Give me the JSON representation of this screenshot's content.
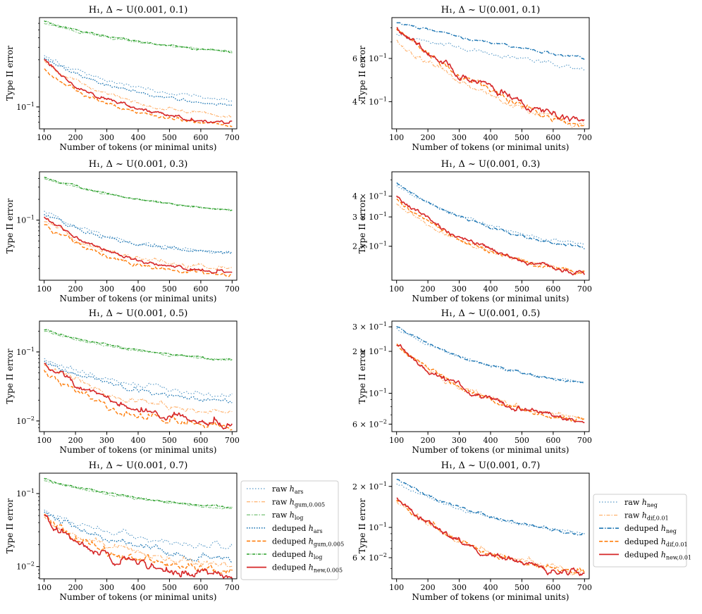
{
  "chart_data": {
    "type": "line",
    "xlabel": "Number of tokens (or minimal units)",
    "ylabel": "Type II error",
    "xticks": [
      100,
      200,
      300,
      400,
      500,
      600,
      700
    ],
    "xlim": [
      85,
      715
    ],
    "series_styles": {
      "raw_ars": {
        "color": "#1f77b4",
        "dash": "1.5 2.5",
        "opacity": 0.75,
        "width": 1.1
      },
      "raw_gum": {
        "color": "#ff7f0e",
        "dash": "5 2 1.5 2",
        "opacity": 0.6,
        "width": 1.1
      },
      "raw_log": {
        "color": "#2ca02c",
        "dash": "5 2 1.5 2",
        "opacity": 0.6,
        "width": 1.1
      },
      "ded_ars": {
        "color": "#1f77b4",
        "dash": "1.5 2",
        "opacity": 1,
        "width": 1.4
      },
      "ded_gum": {
        "color": "#ff7f0e",
        "dash": "5 2.5",
        "opacity": 1,
        "width": 1.4
      },
      "ded_log": {
        "color": "#2ca02c",
        "dash": "4 1.5 1 1.5",
        "opacity": 1,
        "width": 1.4
      },
      "ded_new005": {
        "color": "#d62728",
        "dash": "",
        "opacity": 1,
        "width": 1.6
      },
      "raw_neg": {
        "color": "#1f77b4",
        "dash": "1.5 2.5",
        "opacity": 0.75,
        "width": 1.1
      },
      "raw_dif": {
        "color": "#ff7f0e",
        "dash": "5 2 1.5 2",
        "opacity": 0.6,
        "width": 1.1
      },
      "ded_neg": {
        "color": "#1f77b4",
        "dash": "6 2 1.5 2",
        "opacity": 1,
        "width": 1.4
      },
      "ded_dif": {
        "color": "#ff7f0e",
        "dash": "5 2.5",
        "opacity": 1,
        "width": 1.4
      },
      "ded_new001": {
        "color": "#d62728",
        "dash": "",
        "opacity": 1,
        "width": 1.6
      }
    },
    "left_legend": {
      "placement": "right-of-bottom-left-panel",
      "entries": [
        {
          "key": "raw_ars",
          "prefix": "raw ",
          "base": "h",
          "sub": "ars"
        },
        {
          "key": "raw_gum",
          "prefix": "raw ",
          "base": "h",
          "sub": "gum,0.005"
        },
        {
          "key": "raw_log",
          "prefix": "raw ",
          "base": "h",
          "sub": "log"
        },
        {
          "key": "ded_ars",
          "prefix": "deduped ",
          "base": "h",
          "sub": "ars"
        },
        {
          "key": "ded_gum",
          "prefix": "deduped ",
          "base": "h",
          "sub": "gum,0.005"
        },
        {
          "key": "ded_log",
          "prefix": "deduped ",
          "base": "h",
          "sub": "log"
        },
        {
          "key": "ded_new005",
          "prefix": "deduped ",
          "base": "h",
          "sub": "new,0.005"
        }
      ]
    },
    "right_legend": {
      "placement": "left-of-bottom-right-panel",
      "entries": [
        {
          "key": "raw_neg",
          "prefix": "raw ",
          "base": "h",
          "sub": "neg"
        },
        {
          "key": "raw_dif",
          "prefix": "raw ",
          "base": "h",
          "sub": "dif,0.01"
        },
        {
          "key": "ded_neg",
          "prefix": "deduped ",
          "base": "h",
          "sub": "neg"
        },
        {
          "key": "ded_dif",
          "prefix": "deduped ",
          "base": "h",
          "sub": "dif,0.01"
        },
        {
          "key": "ded_new001",
          "prefix": "deduped ",
          "base": "h",
          "sub": "new,0.01"
        }
      ]
    },
    "panels": [
      {
        "id": "L1",
        "column": "left",
        "row": 0,
        "title": "H₁, Δ ~ U(0.001, 0.1)",
        "ylim_log": [
          0.06,
          0.8
        ],
        "yticks": [
          {
            "value": 0.1,
            "base": "10",
            "exp": "−1"
          }
        ],
        "series": [
          {
            "key": "raw_ars",
            "start": 0.33,
            "end": 0.12,
            "k": 2.0,
            "noise": 0.02
          },
          {
            "key": "raw_gum",
            "start": 0.29,
            "end": 0.08,
            "k": 2.2,
            "noise": 0.02
          },
          {
            "key": "raw_log",
            "start": 0.7,
            "end": 0.36,
            "k": 1.3,
            "noise": 0.01
          },
          {
            "key": "ded_ars",
            "start": 0.31,
            "end": 0.105,
            "k": 2.0,
            "noise": 0.02
          },
          {
            "key": "ded_gum",
            "start": 0.24,
            "end": 0.065,
            "k": 2.4,
            "noise": 0.02
          },
          {
            "key": "ded_log",
            "start": 0.74,
            "end": 0.36,
            "k": 1.3,
            "noise": 0.01
          },
          {
            "key": "ded_new005",
            "start": 0.3,
            "end": 0.07,
            "k": 2.6,
            "noise": 0.025
          }
        ]
      },
      {
        "id": "L2",
        "column": "left",
        "row": 1,
        "title": "H₁, Δ ~ U(0.001, 0.3)",
        "ylim_log": [
          0.0135,
          0.5
        ],
        "yticks": [
          {
            "value": 0.1,
            "base": "10",
            "exp": "−1"
          }
        ],
        "series": [
          {
            "key": "raw_ars",
            "start": 0.14,
            "end": 0.033,
            "k": 2.2,
            "noise": 0.03
          },
          {
            "key": "raw_gum",
            "start": 0.1,
            "end": 0.02,
            "k": 2.4,
            "noise": 0.04
          },
          {
            "key": "raw_log",
            "start": 0.4,
            "end": 0.14,
            "k": 1.4,
            "noise": 0.012
          },
          {
            "key": "ded_ars",
            "start": 0.125,
            "end": 0.033,
            "k": 2.2,
            "noise": 0.03
          },
          {
            "key": "ded_gum",
            "start": 0.09,
            "end": 0.016,
            "k": 2.5,
            "noise": 0.04
          },
          {
            "key": "ded_log",
            "start": 0.42,
            "end": 0.14,
            "k": 1.4,
            "noise": 0.012
          },
          {
            "key": "ded_new005",
            "start": 0.115,
            "end": 0.0175,
            "k": 2.6,
            "noise": 0.035
          }
        ]
      },
      {
        "id": "L3",
        "column": "left",
        "row": 2,
        "title": "H₁, Δ ~ U(0.001, 0.5)",
        "ylim_log": [
          0.007,
          0.28
        ],
        "yticks": [
          {
            "value": 0.1,
            "base": "10",
            "exp": "−1"
          },
          {
            "value": 0.01,
            "base": "10",
            "exp": "−2"
          }
        ],
        "series": [
          {
            "key": "raw_ars",
            "start": 0.08,
            "end": 0.024,
            "k": 2.0,
            "noise": 0.04
          },
          {
            "key": "raw_gum",
            "start": 0.068,
            "end": 0.013,
            "k": 2.2,
            "noise": 0.05
          },
          {
            "key": "raw_log",
            "start": 0.2,
            "end": 0.075,
            "k": 1.4,
            "noise": 0.015
          },
          {
            "key": "ded_ars",
            "start": 0.073,
            "end": 0.02,
            "k": 2.0,
            "noise": 0.04
          },
          {
            "key": "ded_gum",
            "start": 0.055,
            "end": 0.008,
            "k": 2.4,
            "noise": 0.06
          },
          {
            "key": "ded_log",
            "start": 0.21,
            "end": 0.076,
            "k": 1.4,
            "noise": 0.015
          },
          {
            "key": "ded_new005",
            "start": 0.068,
            "end": 0.009,
            "k": 2.0,
            "noise": 0.06
          }
        ]
      },
      {
        "id": "L4",
        "column": "left",
        "row": 3,
        "title": "H₁, Δ ~ U(0.001, 0.7)",
        "ylim_log": [
          0.0068,
          0.19
        ],
        "yticks": [
          {
            "value": 0.1,
            "base": "10",
            "exp": "−1"
          },
          {
            "value": 0.01,
            "base": "10",
            "exp": "−2"
          }
        ],
        "series": [
          {
            "key": "raw_ars",
            "start": 0.058,
            "end": 0.018,
            "k": 2.0,
            "noise": 0.05
          },
          {
            "key": "raw_gum",
            "start": 0.045,
            "end": 0.011,
            "k": 2.3,
            "noise": 0.06
          },
          {
            "key": "raw_log",
            "start": 0.15,
            "end": 0.063,
            "k": 1.4,
            "noise": 0.015
          },
          {
            "key": "ded_ars",
            "start": 0.054,
            "end": 0.013,
            "k": 2.0,
            "noise": 0.05
          },
          {
            "key": "ded_gum",
            "start": 0.048,
            "end": 0.0085,
            "k": 2.6,
            "noise": 0.07
          },
          {
            "key": "ded_log",
            "start": 0.16,
            "end": 0.064,
            "k": 1.4,
            "noise": 0.015
          },
          {
            "key": "ded_new005",
            "start": 0.048,
            "end": 0.0075,
            "k": 2.8,
            "noise": 0.07
          }
        ]
      },
      {
        "id": "R1",
        "column": "right",
        "row": 0,
        "title": "H₁, Δ ~ U(0.001, 0.1)",
        "ylim_log": [
          0.31,
          0.88
        ],
        "yticks": [
          {
            "value": 0.6,
            "base": "6 × 10",
            "exp": "−1"
          },
          {
            "value": 0.4,
            "base": "4 × 10",
            "exp": "−1"
          }
        ],
        "series": [
          {
            "key": "raw_neg",
            "start": 0.76,
            "end": 0.55,
            "k": 0.8,
            "noise": 0.01
          },
          {
            "key": "raw_dif",
            "start": 0.72,
            "end": 0.32,
            "k": 1.3,
            "noise": 0.015
          },
          {
            "key": "ded_neg",
            "start": 0.84,
            "end": 0.6,
            "k": 0.5,
            "noise": 0.006
          },
          {
            "key": "ded_dif",
            "start": 0.8,
            "end": 0.32,
            "k": 1.2,
            "noise": 0.015
          },
          {
            "key": "ded_new001",
            "start": 0.81,
            "end": 0.325,
            "k": 1.2,
            "noise": 0.018
          }
        ]
      },
      {
        "id": "R2",
        "column": "right",
        "row": 1,
        "title": "H₁, Δ ~ U(0.001, 0.3)",
        "ylim_log": [
          0.125,
          0.56
        ],
        "yticks": [
          {
            "value": 0.4,
            "base": "4 × 10",
            "exp": "−1"
          },
          {
            "value": 0.3,
            "base": "3 × 10",
            "exp": "−1"
          },
          {
            "value": 0.2,
            "base": "2 × 10",
            "exp": "−1"
          }
        ],
        "series": [
          {
            "key": "raw_neg",
            "start": 0.46,
            "end": 0.205,
            "k": 1.5,
            "noise": 0.01
          },
          {
            "key": "raw_dif",
            "start": 0.36,
            "end": 0.14,
            "k": 1.7,
            "noise": 0.015
          },
          {
            "key": "ded_neg",
            "start": 0.48,
            "end": 0.195,
            "k": 1.5,
            "noise": 0.01
          },
          {
            "key": "ded_dif",
            "start": 0.38,
            "end": 0.138,
            "k": 1.7,
            "noise": 0.015
          },
          {
            "key": "ded_new001",
            "start": 0.4,
            "end": 0.138,
            "k": 1.7,
            "noise": 0.018
          }
        ]
      },
      {
        "id": "R3",
        "column": "right",
        "row": 2,
        "title": "H₁, Δ ~ U(0.001, 0.5)",
        "ylim_log": [
          0.053,
          0.33
        ],
        "yticks": [
          {
            "value": 0.3,
            "base": "3 × 10",
            "exp": "−1"
          },
          {
            "value": 0.2,
            "base": "2 × 10",
            "exp": "−1"
          },
          {
            "value": 0.1,
            "base": "10",
            "exp": "−1"
          },
          {
            "value": 0.06,
            "base": "6 × 10",
            "exp": "−2"
          }
        ],
        "series": [
          {
            "key": "raw_neg",
            "start": 0.29,
            "end": 0.12,
            "k": 1.6,
            "noise": 0.01
          },
          {
            "key": "raw_dif",
            "start": 0.22,
            "end": 0.066,
            "k": 1.9,
            "noise": 0.02
          },
          {
            "key": "ded_neg",
            "start": 0.3,
            "end": 0.118,
            "k": 1.6,
            "noise": 0.01
          },
          {
            "key": "ded_dif",
            "start": 0.23,
            "end": 0.064,
            "k": 1.9,
            "noise": 0.02
          },
          {
            "key": "ded_new001",
            "start": 0.225,
            "end": 0.064,
            "k": 1.9,
            "noise": 0.025
          }
        ]
      },
      {
        "id": "R4",
        "column": "right",
        "row": 3,
        "title": "H₁, Δ ~ U(0.001, 0.7)",
        "ylim_log": [
          0.042,
          0.25
        ],
        "yticks": [
          {
            "value": 0.2,
            "base": "2 × 10",
            "exp": "−1"
          },
          {
            "value": 0.1,
            "base": "10",
            "exp": "−1"
          },
          {
            "value": 0.06,
            "base": "6 × 10",
            "exp": "−2"
          }
        ],
        "series": [
          {
            "key": "raw_neg",
            "start": 0.21,
            "end": 0.09,
            "k": 1.5,
            "noise": 0.012
          },
          {
            "key": "raw_dif",
            "start": 0.155,
            "end": 0.048,
            "k": 1.9,
            "noise": 0.025
          },
          {
            "key": "ded_neg",
            "start": 0.225,
            "end": 0.09,
            "k": 1.5,
            "noise": 0.012
          },
          {
            "key": "ded_dif",
            "start": 0.16,
            "end": 0.047,
            "k": 1.9,
            "noise": 0.025
          },
          {
            "key": "ded_new001",
            "start": 0.165,
            "end": 0.045,
            "k": 2.0,
            "noise": 0.03
          }
        ]
      }
    ]
  }
}
